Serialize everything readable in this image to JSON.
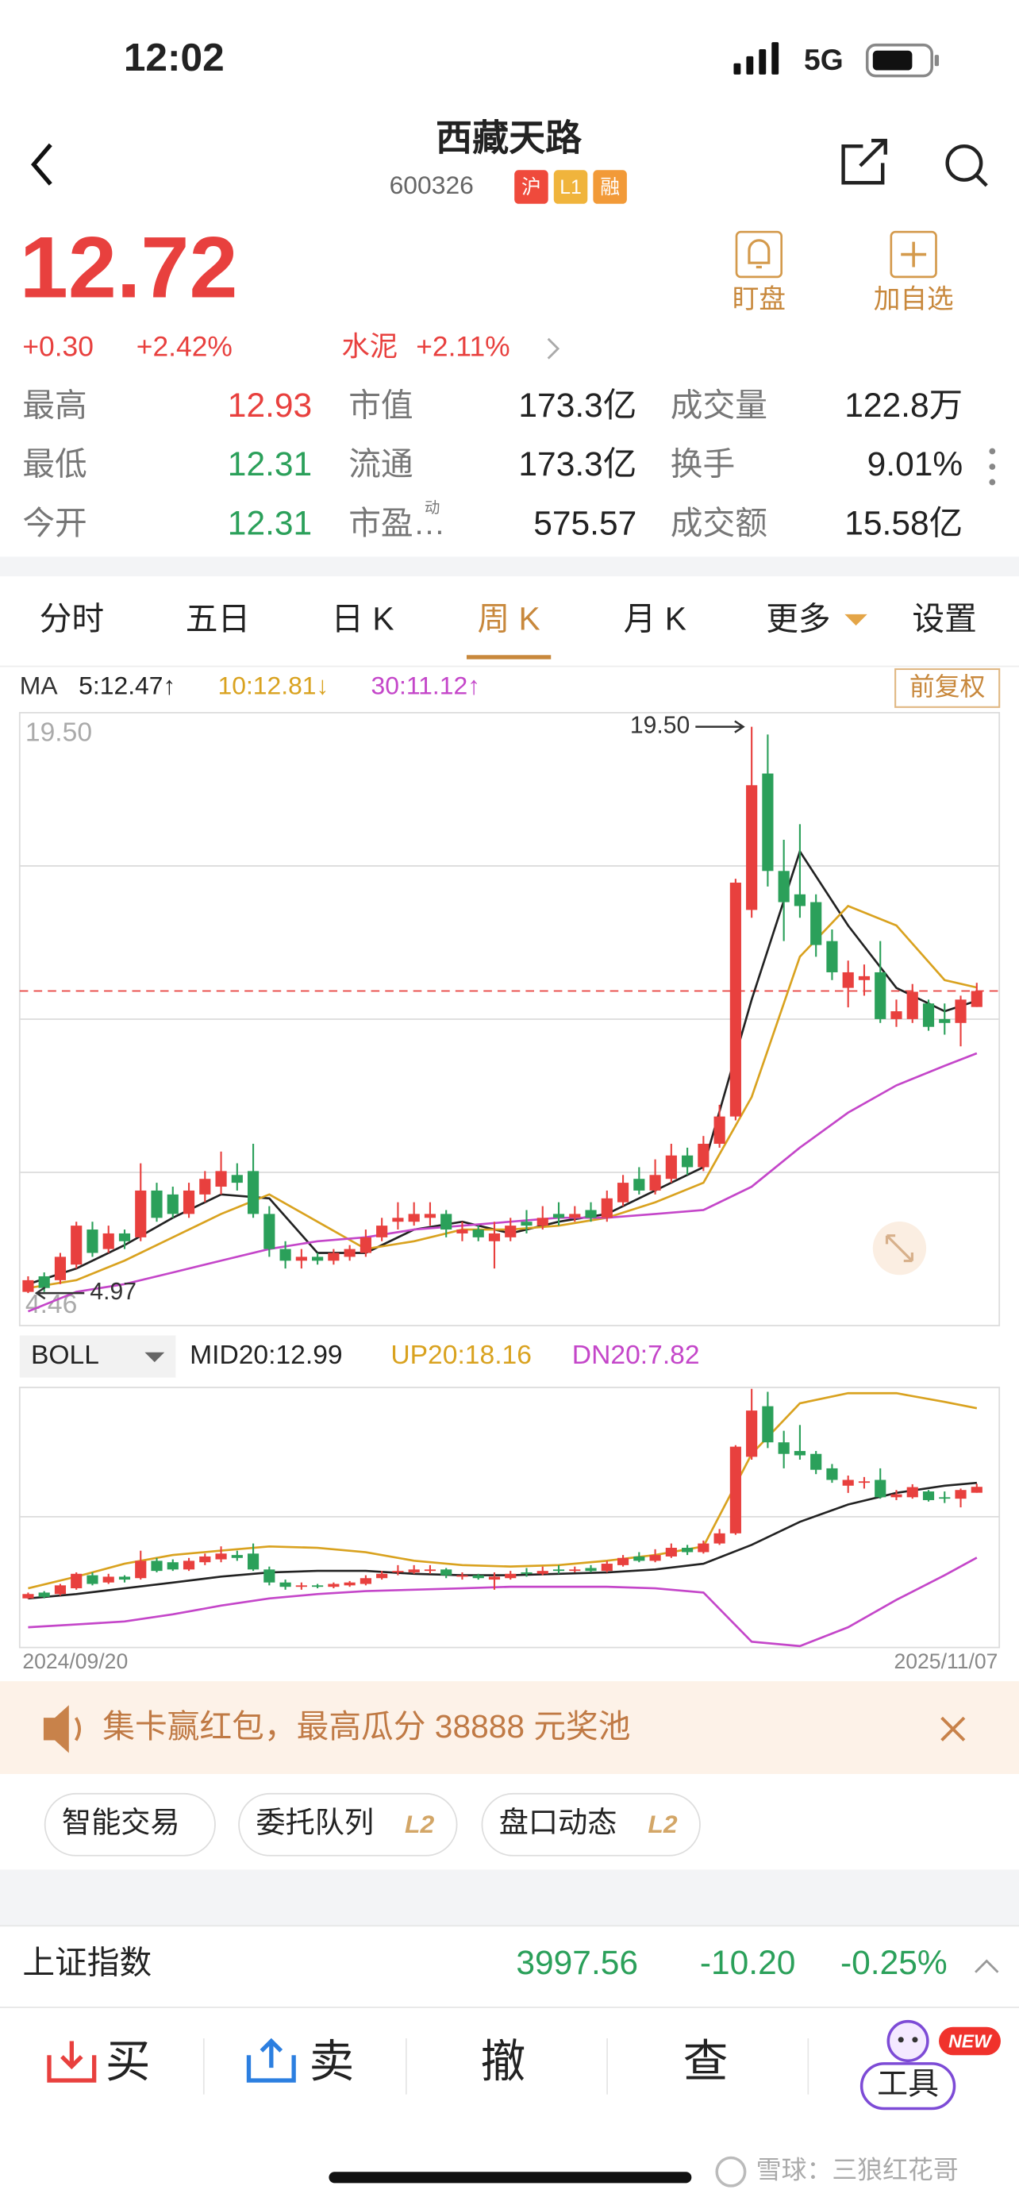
{
  "status_bar": {
    "time": "12:02",
    "network": "5G"
  },
  "header": {
    "title": "西藏天路",
    "code": "600326",
    "badges": [
      "沪",
      "L1",
      "融"
    ]
  },
  "actions": [
    "盯盘",
    "加自选"
  ],
  "quote": {
    "price": "12.72",
    "change": "+0.30",
    "change_pct": "+2.42%",
    "sector": "水泥",
    "sector_change": "+2.11%"
  },
  "stats": [
    [
      {
        "label": "最高",
        "value": "12.93",
        "color": "#e8403e"
      },
      {
        "label": "市值",
        "value": "173.3亿"
      },
      {
        "label": "成交量",
        "value": "122.8万"
      }
    ],
    [
      {
        "label": "最低",
        "value": "12.31",
        "color": "#2ba05a"
      },
      {
        "label": "流通",
        "value": "173.3亿"
      },
      {
        "label": "换手",
        "value": "9.01%"
      }
    ],
    [
      {
        "label": "今开",
        "value": "12.31",
        "color": "#2ba05a"
      },
      {
        "label": "市盈…",
        "sup": "动",
        "value": "575.57"
      },
      {
        "label": "成交额",
        "value": "15.58亿"
      }
    ]
  ],
  "tabs": {
    "items": [
      "分时",
      "五日",
      "日 K",
      "周 K",
      "月 K",
      "更多",
      "设置"
    ],
    "active": 3
  },
  "ma_legend": {
    "label": "MA",
    "items": [
      {
        "text": "5:12.47↑",
        "color": "#222222"
      },
      {
        "text": "10:12.81↓",
        "color": "#d9a21f"
      },
      {
        "text": "30:11.12↑",
        "color": "#c446c9"
      }
    ]
  },
  "adjust": "前复权",
  "boll_legend": {
    "label": "BOLL",
    "items": [
      {
        "text": "MID20:12.99",
        "color": "#222222"
      },
      {
        "text": "UP20:18.16",
        "color": "#d9a21f"
      },
      {
        "text": "DN20:7.82",
        "color": "#c446c9"
      }
    ]
  },
  "chart_data": [
    {
      "type": "candlestick",
      "up_color": "#e8403e",
      "down_color": "#2ba05a",
      "ylim": [
        4.46,
        19.5
      ],
      "yticks": [
        {
          "value": 19.5,
          "label": "19.50"
        },
        {
          "value": 4.46,
          "label": "4.46"
        }
      ],
      "price_line": 12.72,
      "annotations": [
        {
          "index": 45,
          "value": 19.5,
          "label": "19.50"
        },
        {
          "index": 0,
          "value": 4.97,
          "label": "4.97"
        }
      ],
      "open": [
        5.0,
        5.4,
        5.3,
        5.7,
        6.6,
        6.1,
        6.5,
        6.4,
        7.6,
        7.5,
        7.0,
        7.5,
        7.7,
        8.0,
        8.1,
        7.0,
        6.1,
        5.8,
        5.9,
        5.8,
        5.9,
        6.0,
        6.4,
        6.8,
        6.8,
        6.9,
        7.0,
        6.5,
        6.6,
        6.3,
        6.4,
        6.8,
        6.7,
        7.0,
        6.9,
        7.1,
        6.9,
        7.3,
        7.9,
        7.6,
        7.9,
        8.5,
        8.2,
        8.8,
        9.5,
        14.8,
        18.3,
        15.8,
        15.2,
        15.0,
        14.0,
        12.8,
        13.0,
        13.2,
        12.0,
        12.0,
        12.4,
        12.0,
        11.9,
        12.31
      ],
      "high": [
        5.4,
        5.5,
        6.0,
        6.8,
        6.8,
        6.7,
        6.6,
        8.3,
        7.8,
        7.7,
        7.8,
        8.1,
        8.6,
        8.3,
        8.8,
        7.2,
        6.3,
        6.1,
        6.0,
        6.1,
        6.2,
        6.6,
        6.9,
        7.3,
        7.3,
        7.3,
        7.1,
        6.8,
        6.7,
        6.8,
        6.9,
        7.1,
        7.2,
        7.3,
        7.2,
        7.3,
        7.6,
        8.0,
        8.2,
        8.4,
        8.8,
        8.7,
        9.0,
        9.8,
        15.6,
        19.5,
        19.3,
        16.6,
        17.0,
        15.2,
        14.3,
        13.5,
        13.4,
        14.0,
        12.5,
        12.9,
        12.5,
        12.4,
        12.6,
        12.93
      ],
      "low": [
        4.97,
        5.0,
        5.2,
        5.6,
        5.9,
        6.0,
        6.1,
        6.3,
        6.8,
        6.9,
        6.9,
        7.3,
        7.5,
        7.6,
        6.9,
        5.9,
        5.6,
        5.6,
        5.7,
        5.7,
        5.8,
        5.9,
        6.3,
        6.6,
        6.7,
        6.7,
        6.4,
        6.3,
        6.3,
        5.6,
        6.3,
        6.5,
        6.6,
        6.7,
        6.8,
        6.8,
        6.8,
        7.2,
        7.5,
        7.5,
        7.8,
        8.0,
        8.1,
        8.7,
        9.4,
        14.6,
        15.4,
        14.0,
        14.6,
        13.6,
        13.0,
        12.3,
        12.6,
        11.9,
        11.8,
        11.9,
        11.7,
        11.6,
        11.3,
        12.31
      ],
      "close": [
        5.3,
        5.1,
        5.9,
        6.7,
        6.0,
        6.5,
        6.3,
        7.6,
        6.9,
        7.0,
        7.6,
        7.9,
        8.1,
        7.8,
        7.0,
        6.1,
        5.8,
        5.9,
        5.8,
        6.0,
        6.1,
        6.4,
        6.7,
        6.9,
        7.0,
        7.0,
        6.6,
        6.6,
        6.4,
        6.5,
        6.7,
        6.7,
        6.9,
        6.9,
        7.0,
        6.9,
        7.4,
        7.8,
        7.6,
        8.0,
        8.5,
        8.2,
        8.8,
        9.5,
        15.5,
        18.0,
        15.8,
        15.0,
        14.9,
        13.9,
        13.2,
        13.2,
        13.1,
        12.0,
        12.2,
        12.7,
        11.8,
        11.9,
        12.5,
        12.72
      ],
      "series": [
        {
          "color": "#222222",
          "x": [
            0,
            3,
            6,
            9,
            12,
            15,
            18,
            21,
            24,
            27,
            30,
            33,
            36,
            39,
            42,
            45,
            48,
            51,
            54,
            57,
            59
          ],
          "values": [
            5.2,
            5.6,
            6.2,
            6.9,
            7.5,
            7.4,
            6.0,
            6.0,
            6.6,
            6.8,
            6.5,
            6.8,
            7.0,
            7.6,
            8.2,
            12.5,
            16.3,
            14.4,
            12.8,
            12.2,
            12.47
          ]
        },
        {
          "color": "#d9a21f",
          "x": [
            0,
            3,
            6,
            9,
            12,
            15,
            18,
            21,
            24,
            27,
            30,
            33,
            36,
            39,
            42,
            45,
            48,
            51,
            54,
            57,
            59
          ],
          "values": [
            5.1,
            5.3,
            5.8,
            6.4,
            7.0,
            7.5,
            6.8,
            6.1,
            6.3,
            6.6,
            6.6,
            6.7,
            6.9,
            7.3,
            7.8,
            10.0,
            13.6,
            14.9,
            14.4,
            13.0,
            12.81
          ]
        },
        {
          "color": "#c446c9",
          "x": [
            0,
            3,
            6,
            9,
            12,
            15,
            18,
            21,
            24,
            27,
            30,
            33,
            36,
            39,
            42,
            45,
            48,
            51,
            54,
            57,
            59
          ],
          "values": [
            4.5,
            5.0,
            5.2,
            5.5,
            5.8,
            6.1,
            6.3,
            6.4,
            6.6,
            6.7,
            6.8,
            6.9,
            6.9,
            7.0,
            7.1,
            7.7,
            8.7,
            9.6,
            10.3,
            10.8,
            11.12
          ]
        }
      ]
    },
    {
      "type": "boll",
      "ylim": [
        1.6,
        19.6
      ],
      "series": [
        {
          "color": "#222222",
          "x": [
            0,
            3,
            6,
            9,
            12,
            15,
            18,
            21,
            24,
            27,
            30,
            33,
            36,
            39,
            42,
            45,
            48,
            51,
            54,
            57,
            59
          ],
          "values": [
            5.0,
            5.3,
            5.7,
            6.1,
            6.5,
            6.8,
            6.9,
            6.9,
            6.7,
            6.6,
            6.6,
            6.7,
            6.8,
            7.0,
            7.4,
            8.7,
            10.3,
            11.5,
            12.3,
            12.8,
            12.99
          ]
        },
        {
          "color": "#d9a21f",
          "x": [
            0,
            3,
            6,
            9,
            12,
            15,
            18,
            21,
            24,
            27,
            30,
            33,
            36,
            39,
            42,
            45,
            48,
            51,
            54,
            57,
            59
          ],
          "values": [
            5.7,
            6.5,
            7.4,
            8.0,
            8.3,
            8.6,
            8.5,
            8.2,
            7.6,
            7.3,
            7.2,
            7.3,
            7.6,
            8.0,
            8.6,
            15.0,
            18.5,
            19.2,
            19.2,
            18.6,
            18.16
          ]
        },
        {
          "color": "#c446c9",
          "x": [
            0,
            3,
            6,
            9,
            12,
            15,
            18,
            21,
            24,
            27,
            30,
            33,
            36,
            39,
            42,
            45,
            48,
            51,
            54,
            57,
            59
          ],
          "values": [
            3.0,
            3.2,
            3.4,
            3.9,
            4.5,
            5.0,
            5.3,
            5.5,
            5.6,
            5.7,
            5.8,
            5.8,
            5.8,
            5.7,
            5.4,
            2.0,
            1.7,
            3.0,
            4.9,
            6.6,
            7.82
          ]
        }
      ]
    }
  ],
  "dates": [
    "2024/09/20",
    "2025/11/07"
  ],
  "banner": "集卡赢红包，最高瓜分 38888 元奖池",
  "chips": [
    {
      "label": "智能交易"
    },
    {
      "label": "委托队列",
      "badge": "L2"
    },
    {
      "label": "盘口动态",
      "badge": "L2"
    }
  ],
  "index_bar": {
    "name": "上证指数",
    "value": "3997.56",
    "change": "-10.20",
    "change_pct": "-0.25%"
  },
  "toolbar": [
    "买",
    "卖",
    "撤",
    "查",
    "工具"
  ],
  "new_badge": "NEW",
  "watermark": "雪球：三狼红花哥"
}
